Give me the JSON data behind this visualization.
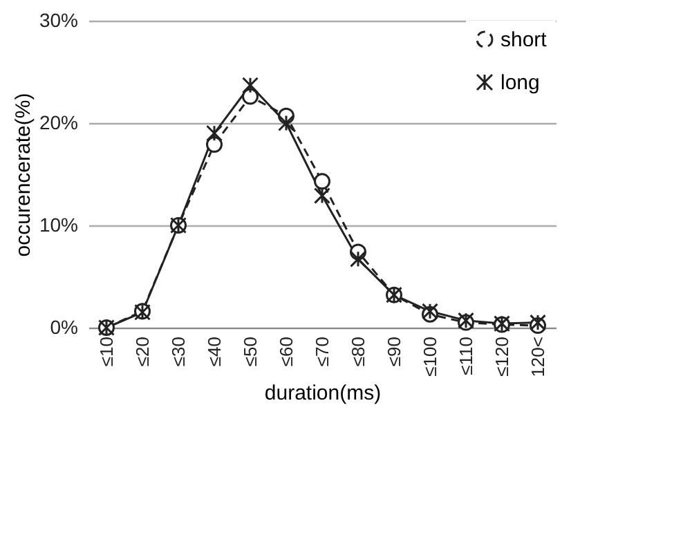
{
  "chart_data": {
    "type": "line",
    "xlabel": "duration(ms)",
    "ylabel": "occurencerate(%)",
    "categories": [
      "≤10",
      "≤20",
      "≤30",
      "≤40",
      "≤50",
      "≤60",
      "≤70",
      "≤80",
      "≤90",
      "≤100",
      "≤110",
      "≤120",
      "120<"
    ],
    "series": [
      {
        "name": "short",
        "color": "#222222",
        "line_style": "dashed",
        "marker": "circle",
        "values": [
          0,
          1.6,
          10,
          17.9,
          22.6,
          20.7,
          14.3,
          7.4,
          3.2,
          1.3,
          0.5,
          0.3,
          0.2
        ]
      },
      {
        "name": "long",
        "color": "#222222",
        "line_style": "solid",
        "marker": "cross",
        "values": [
          0,
          1.5,
          10,
          19.0,
          23.7,
          20.0,
          12.9,
          6.7,
          3.2,
          1.6,
          0.7,
          0.4,
          0.5
        ]
      }
    ],
    "ylim": [
      0,
      30
    ],
    "yticks": [
      {
        "value": 0,
        "label": "0%"
      },
      {
        "value": 10,
        "label": "10%"
      },
      {
        "value": 20,
        "label": "20%"
      },
      {
        "value": 30,
        "label": "30%"
      }
    ],
    "grid": "y",
    "legend": "top right"
  }
}
